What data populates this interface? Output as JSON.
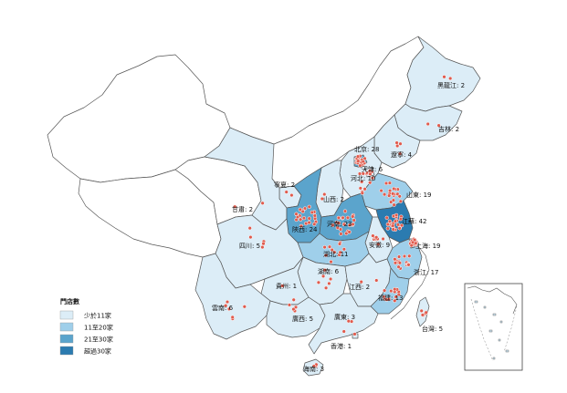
{
  "legend": {
    "title": "門店數",
    "items": [
      {
        "label": "少於11家",
        "color": "#dcedf7"
      },
      {
        "label": "11至20家",
        "color": "#9fcfea"
      },
      {
        "label": "21至30家",
        "color": "#5ba4cc"
      },
      {
        "label": "超過30家",
        "color": "#2b7bb0"
      }
    ]
  },
  "provinces": [
    {
      "key": "heilongjiang",
      "label": "黑龍江: 2",
      "count": 2
    },
    {
      "key": "jilin",
      "label": "吉林: 2",
      "count": 2
    },
    {
      "key": "liaoning",
      "label": "遼寧: 4",
      "count": 4
    },
    {
      "key": "beijing",
      "label": "北京: 28",
      "count": 28
    },
    {
      "key": "tianjin",
      "label": "天津: 6",
      "count": 6
    },
    {
      "key": "hebei",
      "label": "河北: 10",
      "count": 10
    },
    {
      "key": "ningxia",
      "label": "寧夏: 2",
      "count": 2
    },
    {
      "key": "shanxi",
      "label": "山西: 2",
      "count": 2
    },
    {
      "key": "shandong",
      "label": "山東: 19",
      "count": 19
    },
    {
      "key": "gansu",
      "label": "甘肅: 2",
      "count": 2
    },
    {
      "key": "shaanxi",
      "label": "陝西: 24",
      "count": 24
    },
    {
      "key": "henan",
      "label": "河南: 23",
      "count": 23
    },
    {
      "key": "jiangsu",
      "label": "江蘇: 42",
      "count": 42
    },
    {
      "key": "shanghai",
      "label": "上海: 19",
      "count": 19
    },
    {
      "key": "anhui",
      "label": "安徽: 9",
      "count": 9
    },
    {
      "key": "hubei",
      "label": "湖北: 11",
      "count": 11
    },
    {
      "key": "sichuan",
      "label": "四川: 5",
      "count": 5
    },
    {
      "key": "zhejiang",
      "label": "浙江: 17",
      "count": 17
    },
    {
      "key": "hunan",
      "label": "湖南: 6",
      "count": 6
    },
    {
      "key": "guizhou",
      "label": "貴州: 1",
      "count": 1
    },
    {
      "key": "jiangxi",
      "label": "江西: 2",
      "count": 2
    },
    {
      "key": "fujian",
      "label": "福建: 13",
      "count": 13
    },
    {
      "key": "yunnan",
      "label": "雲南: 6",
      "count": 6
    },
    {
      "key": "guangxi",
      "label": "廣西: 5",
      "count": 5
    },
    {
      "key": "guangdong",
      "label": "廣東: 3",
      "count": 3
    },
    {
      "key": "taiwan",
      "label": "台灣: 5",
      "count": 5
    },
    {
      "key": "hongkong",
      "label": "香港: 1",
      "count": 1
    },
    {
      "key": "hainan",
      "label": "海南: 3",
      "count": 3
    }
  ]
}
